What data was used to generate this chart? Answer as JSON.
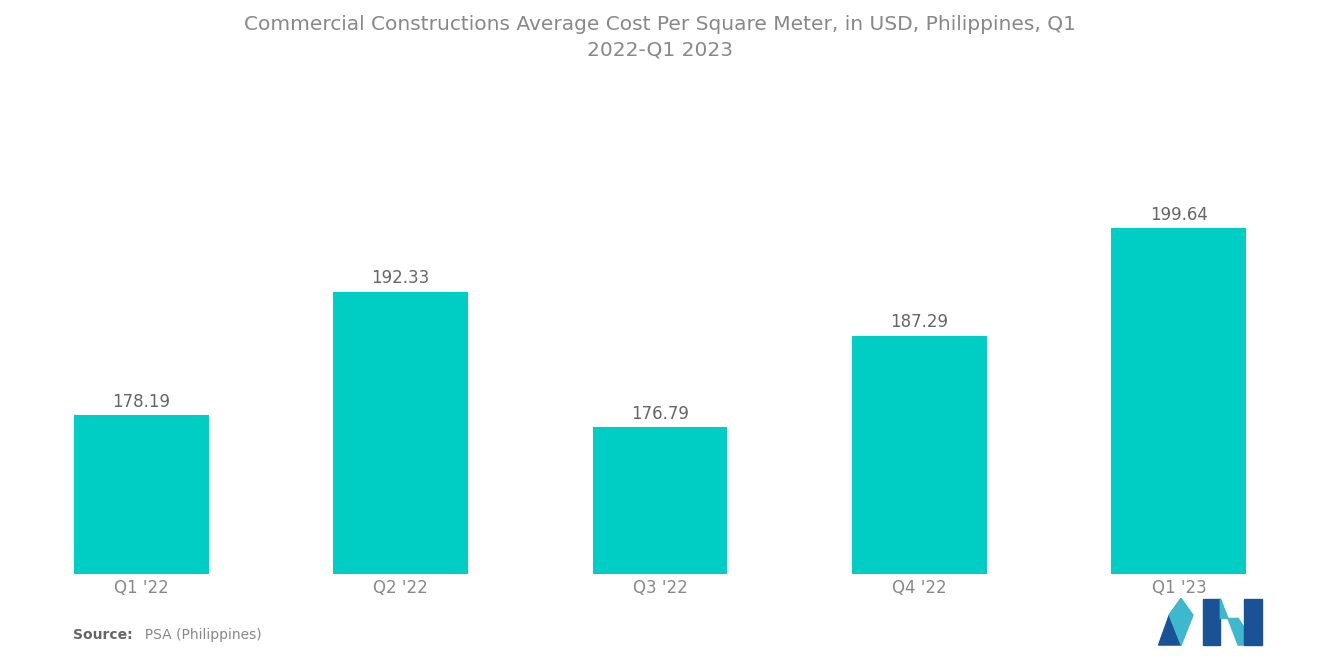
{
  "title": "Commercial Constructions Average Cost Per Square Meter, in USD, Philippines, Q1\n2022-Q1 2023",
  "categories": [
    "Q1 '22",
    "Q2 '22",
    "Q3 '22",
    "Q4 '22",
    "Q1 '23"
  ],
  "values": [
    178.19,
    192.33,
    176.79,
    187.29,
    199.64
  ],
  "bar_color": "#00CEC4",
  "background_color": "#ffffff",
  "title_fontsize": 14.5,
  "label_fontsize": 12,
  "tick_fontsize": 12,
  "ylim_min": 160,
  "ylim_max": 215,
  "bar_width": 0.52,
  "title_color": "#888888",
  "tick_color": "#888888",
  "label_color": "#666666",
  "source_label_bold": "Source:",
  "source_label_rest": "  PSA (Philippines)",
  "logo_left_dark": "#1a5296",
  "logo_left_light": "#3eb8cc",
  "logo_right_dark": "#1a5296",
  "logo_right_light": "#3eb8cc"
}
